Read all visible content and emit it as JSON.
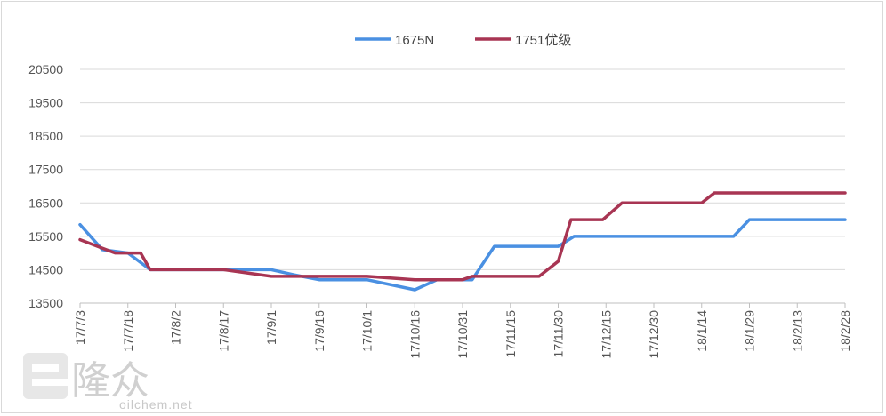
{
  "chart_data": {
    "type": "line",
    "title": "",
    "xlabel": "",
    "ylabel": "",
    "ylim": [
      13500,
      20500
    ],
    "yticks": [
      13500,
      14500,
      15500,
      16500,
      17500,
      18500,
      19500,
      20500
    ],
    "grid": "horizontal",
    "legend_position": "top",
    "categories": [
      "17/7/3",
      "17/7/18",
      "17/8/2",
      "17/8/17",
      "17/9/1",
      "17/9/16",
      "17/10/1",
      "17/10/16",
      "17/10/31",
      "17/11/15",
      "17/11/30",
      "17/12/15",
      "17/12/30",
      "18/1/14",
      "18/1/29",
      "18/2/13",
      "18/2/28"
    ],
    "series": [
      {
        "name": "1675N",
        "color": "#4a90e2",
        "points": [
          [
            "17/7/3",
            15850
          ],
          [
            "17/7/10",
            15100
          ],
          [
            "17/7/18",
            15000
          ],
          [
            "17/7/25",
            14500
          ],
          [
            "17/8/2",
            14500
          ],
          [
            "17/8/17",
            14500
          ],
          [
            "17/9/1",
            14500
          ],
          [
            "17/9/8",
            14350
          ],
          [
            "17/9/16",
            14200
          ],
          [
            "17/10/1",
            14200
          ],
          [
            "17/10/16",
            13900
          ],
          [
            "17/10/23",
            14200
          ],
          [
            "17/10/31",
            14200
          ],
          [
            "17/11/3",
            14200
          ],
          [
            "17/11/10",
            15200
          ],
          [
            "17/11/15",
            15200
          ],
          [
            "17/11/30",
            15200
          ],
          [
            "17/12/5",
            15500
          ],
          [
            "17/12/15",
            15500
          ],
          [
            "17/12/30",
            15500
          ],
          [
            "18/1/14",
            15500
          ],
          [
            "18/1/24",
            15500
          ],
          [
            "18/1/29",
            16000
          ],
          [
            "18/2/13",
            16000
          ],
          [
            "18/2/28",
            16000
          ]
        ]
      },
      {
        "name": "1751优级",
        "color": "#a83553",
        "points": [
          [
            "17/7/3",
            15400
          ],
          [
            "17/7/14",
            15000
          ],
          [
            "17/7/22",
            15000
          ],
          [
            "17/7/25",
            14500
          ],
          [
            "17/8/2",
            14500
          ],
          [
            "17/8/17",
            14500
          ],
          [
            "17/9/1",
            14300
          ],
          [
            "17/9/16",
            14300
          ],
          [
            "17/10/1",
            14300
          ],
          [
            "17/10/16",
            14200
          ],
          [
            "17/10/31",
            14200
          ],
          [
            "17/11/3",
            14300
          ],
          [
            "17/11/15",
            14300
          ],
          [
            "17/11/24",
            14300
          ],
          [
            "17/11/30",
            14750
          ],
          [
            "17/12/4",
            16000
          ],
          [
            "17/12/14",
            16000
          ],
          [
            "17/12/20",
            16500
          ],
          [
            "17/12/30",
            16500
          ],
          [
            "18/1/14",
            16500
          ],
          [
            "18/1/18",
            16800
          ],
          [
            "18/1/29",
            16800
          ],
          [
            "18/2/13",
            16800
          ],
          [
            "18/2/28",
            16800
          ]
        ]
      }
    ]
  },
  "watermark": {
    "brand": "隆众",
    "url": "oilchem.net"
  }
}
